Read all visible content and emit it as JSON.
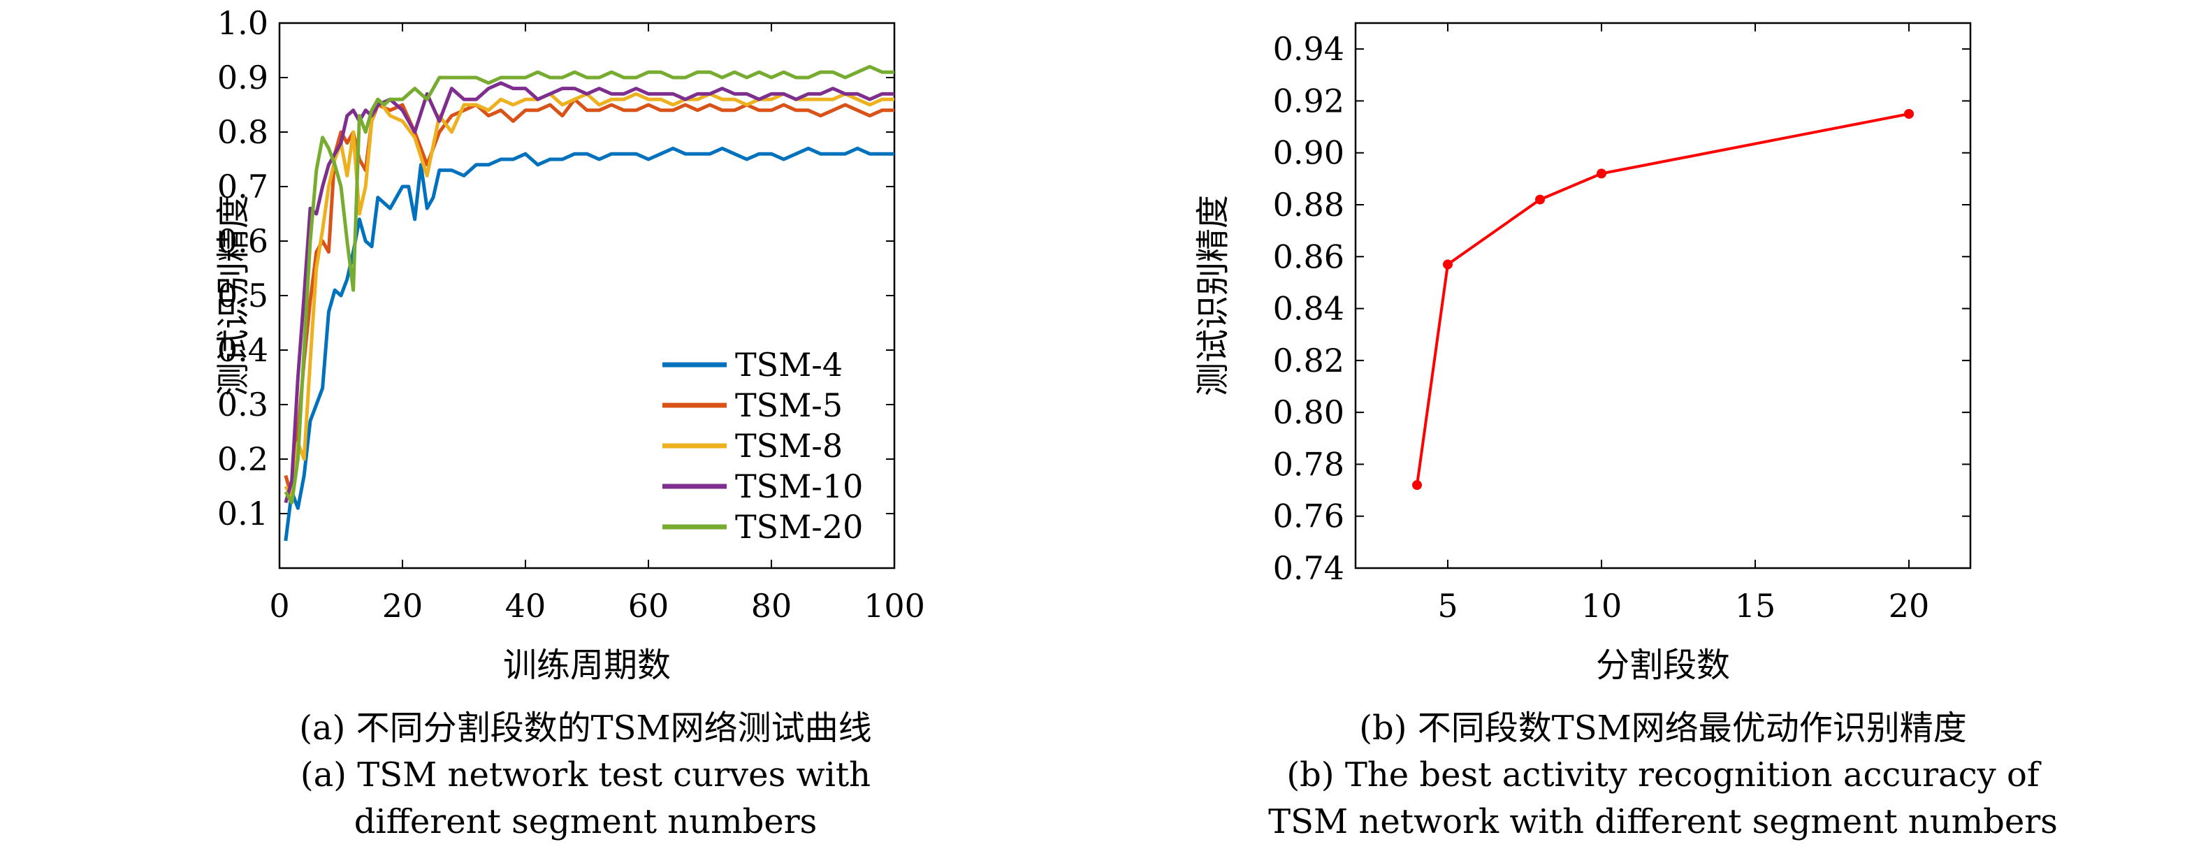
{
  "chart_data": [
    {
      "type": "line",
      "xlabel": "训练周期数",
      "ylabel": "测试识别精度",
      "xlim": [
        0,
        100
      ],
      "ylim": [
        0,
        1.0
      ],
      "xticks": [
        "0",
        "20",
        "40",
        "60",
        "80",
        "100"
      ],
      "yticks": [
        "0.1",
        "0.2",
        "0.3",
        "0.4",
        "0.5",
        "0.6",
        "0.7",
        "0.8",
        "0.9",
        "1.0"
      ],
      "legend_position": "bottom-right",
      "caption_cn": "(a) 不同分割段数的TSM网络测试曲线",
      "caption_en_1": "(a) TSM network test curves with",
      "caption_en_2": "different segment numbers",
      "series": [
        {
          "name": "TSM-4",
          "color": "#0072BD",
          "x": [
            1,
            2,
            3,
            4,
            5,
            6,
            7,
            8,
            9,
            10,
            11,
            12,
            13,
            14,
            15,
            16,
            18,
            20,
            21,
            22,
            23,
            24,
            25,
            26,
            28,
            30,
            32,
            34,
            36,
            38,
            40,
            42,
            44,
            46,
            48,
            50,
            52,
            54,
            56,
            58,
            60,
            62,
            64,
            66,
            68,
            70,
            72,
            74,
            76,
            78,
            80,
            82,
            84,
            86,
            88,
            90,
            92,
            94,
            96,
            98,
            100
          ],
          "values": [
            0.05,
            0.14,
            0.11,
            0.17,
            0.27,
            0.3,
            0.33,
            0.47,
            0.51,
            0.5,
            0.53,
            0.58,
            0.64,
            0.6,
            0.59,
            0.68,
            0.66,
            0.7,
            0.7,
            0.64,
            0.74,
            0.66,
            0.68,
            0.73,
            0.73,
            0.72,
            0.74,
            0.74,
            0.75,
            0.75,
            0.76,
            0.74,
            0.75,
            0.75,
            0.76,
            0.76,
            0.75,
            0.76,
            0.76,
            0.76,
            0.75,
            0.76,
            0.77,
            0.76,
            0.76,
            0.76,
            0.77,
            0.76,
            0.75,
            0.76,
            0.76,
            0.75,
            0.76,
            0.77,
            0.76,
            0.76,
            0.76,
            0.77,
            0.76,
            0.76,
            0.76
          ]
        },
        {
          "name": "TSM-5",
          "color": "#D95319",
          "x": [
            1,
            2,
            3,
            4,
            5,
            6,
            7,
            8,
            9,
            10,
            11,
            12,
            13,
            14,
            15,
            16,
            18,
            20,
            22,
            24,
            26,
            28,
            30,
            32,
            34,
            36,
            38,
            40,
            42,
            44,
            46,
            48,
            50,
            52,
            54,
            56,
            58,
            60,
            62,
            64,
            66,
            68,
            70,
            72,
            74,
            76,
            78,
            80,
            82,
            84,
            86,
            88,
            90,
            92,
            94,
            96,
            98,
            100
          ],
          "values": [
            0.17,
            0.13,
            0.25,
            0.38,
            0.49,
            0.58,
            0.6,
            0.58,
            0.76,
            0.8,
            0.78,
            0.8,
            0.75,
            0.73,
            0.82,
            0.85,
            0.84,
            0.85,
            0.8,
            0.74,
            0.8,
            0.83,
            0.84,
            0.85,
            0.83,
            0.84,
            0.82,
            0.84,
            0.84,
            0.85,
            0.83,
            0.86,
            0.84,
            0.84,
            0.85,
            0.84,
            0.84,
            0.85,
            0.84,
            0.84,
            0.85,
            0.84,
            0.85,
            0.84,
            0.84,
            0.85,
            0.84,
            0.84,
            0.85,
            0.84,
            0.84,
            0.83,
            0.84,
            0.85,
            0.84,
            0.83,
            0.84,
            0.84
          ]
        },
        {
          "name": "TSM-8",
          "color": "#EDB120",
          "x": [
            1,
            2,
            3,
            4,
            5,
            6,
            7,
            8,
            9,
            10,
            11,
            12,
            13,
            14,
            15,
            16,
            18,
            20,
            22,
            24,
            26,
            28,
            30,
            32,
            34,
            36,
            38,
            40,
            42,
            44,
            46,
            48,
            50,
            52,
            54,
            56,
            58,
            60,
            62,
            64,
            66,
            68,
            70,
            72,
            74,
            76,
            78,
            80,
            82,
            84,
            86,
            88,
            90,
            92,
            94,
            96,
            98,
            100
          ],
          "values": [
            0.15,
            0.13,
            0.23,
            0.2,
            0.38,
            0.55,
            0.62,
            0.7,
            0.75,
            0.78,
            0.72,
            0.8,
            0.65,
            0.7,
            0.82,
            0.86,
            0.83,
            0.82,
            0.79,
            0.72,
            0.83,
            0.8,
            0.85,
            0.85,
            0.84,
            0.86,
            0.85,
            0.86,
            0.86,
            0.87,
            0.85,
            0.86,
            0.87,
            0.85,
            0.86,
            0.86,
            0.87,
            0.86,
            0.86,
            0.85,
            0.86,
            0.86,
            0.87,
            0.86,
            0.86,
            0.85,
            0.86,
            0.86,
            0.87,
            0.86,
            0.86,
            0.86,
            0.86,
            0.87,
            0.86,
            0.85,
            0.86,
            0.86
          ]
        },
        {
          "name": "TSM-10",
          "color": "#7E2F8E",
          "x": [
            1,
            2,
            3,
            4,
            5,
            6,
            7,
            8,
            9,
            10,
            11,
            12,
            13,
            14,
            15,
            16,
            18,
            20,
            22,
            24,
            26,
            28,
            30,
            32,
            34,
            36,
            38,
            40,
            42,
            44,
            46,
            48,
            50,
            52,
            54,
            56,
            58,
            60,
            62,
            64,
            66,
            68,
            70,
            72,
            74,
            76,
            78,
            80,
            82,
            84,
            86,
            88,
            90,
            92,
            94,
            96,
            98,
            100
          ],
          "values": [
            0.12,
            0.16,
            0.35,
            0.5,
            0.66,
            0.65,
            0.7,
            0.74,
            0.76,
            0.78,
            0.83,
            0.84,
            0.82,
            0.84,
            0.83,
            0.85,
            0.86,
            0.84,
            0.8,
            0.87,
            0.82,
            0.88,
            0.86,
            0.86,
            0.88,
            0.89,
            0.88,
            0.88,
            0.86,
            0.87,
            0.88,
            0.88,
            0.87,
            0.88,
            0.87,
            0.87,
            0.88,
            0.87,
            0.87,
            0.87,
            0.86,
            0.87,
            0.87,
            0.88,
            0.87,
            0.87,
            0.86,
            0.87,
            0.87,
            0.86,
            0.87,
            0.87,
            0.88,
            0.87,
            0.87,
            0.86,
            0.87,
            0.87
          ]
        },
        {
          "name": "TSM-20",
          "color": "#77AC30",
          "x": [
            1,
            2,
            3,
            4,
            5,
            6,
            7,
            8,
            9,
            10,
            11,
            12,
            13,
            14,
            15,
            16,
            17,
            18,
            20,
            22,
            24,
            26,
            28,
            30,
            32,
            34,
            36,
            38,
            40,
            42,
            44,
            46,
            48,
            50,
            52,
            54,
            56,
            58,
            60,
            62,
            64,
            66,
            68,
            70,
            72,
            74,
            76,
            78,
            80,
            82,
            84,
            86,
            88,
            90,
            92,
            94,
            96,
            98,
            100
          ],
          "values": [
            0.14,
            0.12,
            0.2,
            0.4,
            0.6,
            0.73,
            0.79,
            0.77,
            0.74,
            0.7,
            0.6,
            0.51,
            0.83,
            0.8,
            0.84,
            0.86,
            0.85,
            0.86,
            0.86,
            0.88,
            0.86,
            0.9,
            0.9,
            0.9,
            0.9,
            0.89,
            0.9,
            0.9,
            0.9,
            0.91,
            0.9,
            0.9,
            0.91,
            0.9,
            0.9,
            0.91,
            0.9,
            0.9,
            0.91,
            0.91,
            0.9,
            0.9,
            0.91,
            0.91,
            0.9,
            0.91,
            0.9,
            0.91,
            0.9,
            0.91,
            0.9,
            0.9,
            0.91,
            0.91,
            0.9,
            0.91,
            0.92,
            0.91,
            0.91
          ]
        }
      ]
    },
    {
      "type": "line",
      "xlabel": "分割段数",
      "ylabel": "测试识别精度",
      "xlim": [
        2,
        22
      ],
      "ylim": [
        0.74,
        0.95
      ],
      "xticks": [
        "5",
        "10",
        "15",
        "20"
      ],
      "yticks": [
        "0.74",
        "0.76",
        "0.78",
        "0.80",
        "0.82",
        "0.84",
        "0.86",
        "0.88",
        "0.90",
        "0.92",
        "0.94"
      ],
      "caption_cn": "(b) 不同段数TSM网络最优动作识别精度",
      "caption_en_1": "(b) The best activity recognition accuracy of",
      "caption_en_2": "TSM network with different segment numbers",
      "series": [
        {
          "color": "#FF0000",
          "x": [
            4,
            5,
            8,
            10,
            20
          ],
          "values": [
            0.772,
            0.857,
            0.882,
            0.892,
            0.915
          ]
        }
      ]
    }
  ]
}
